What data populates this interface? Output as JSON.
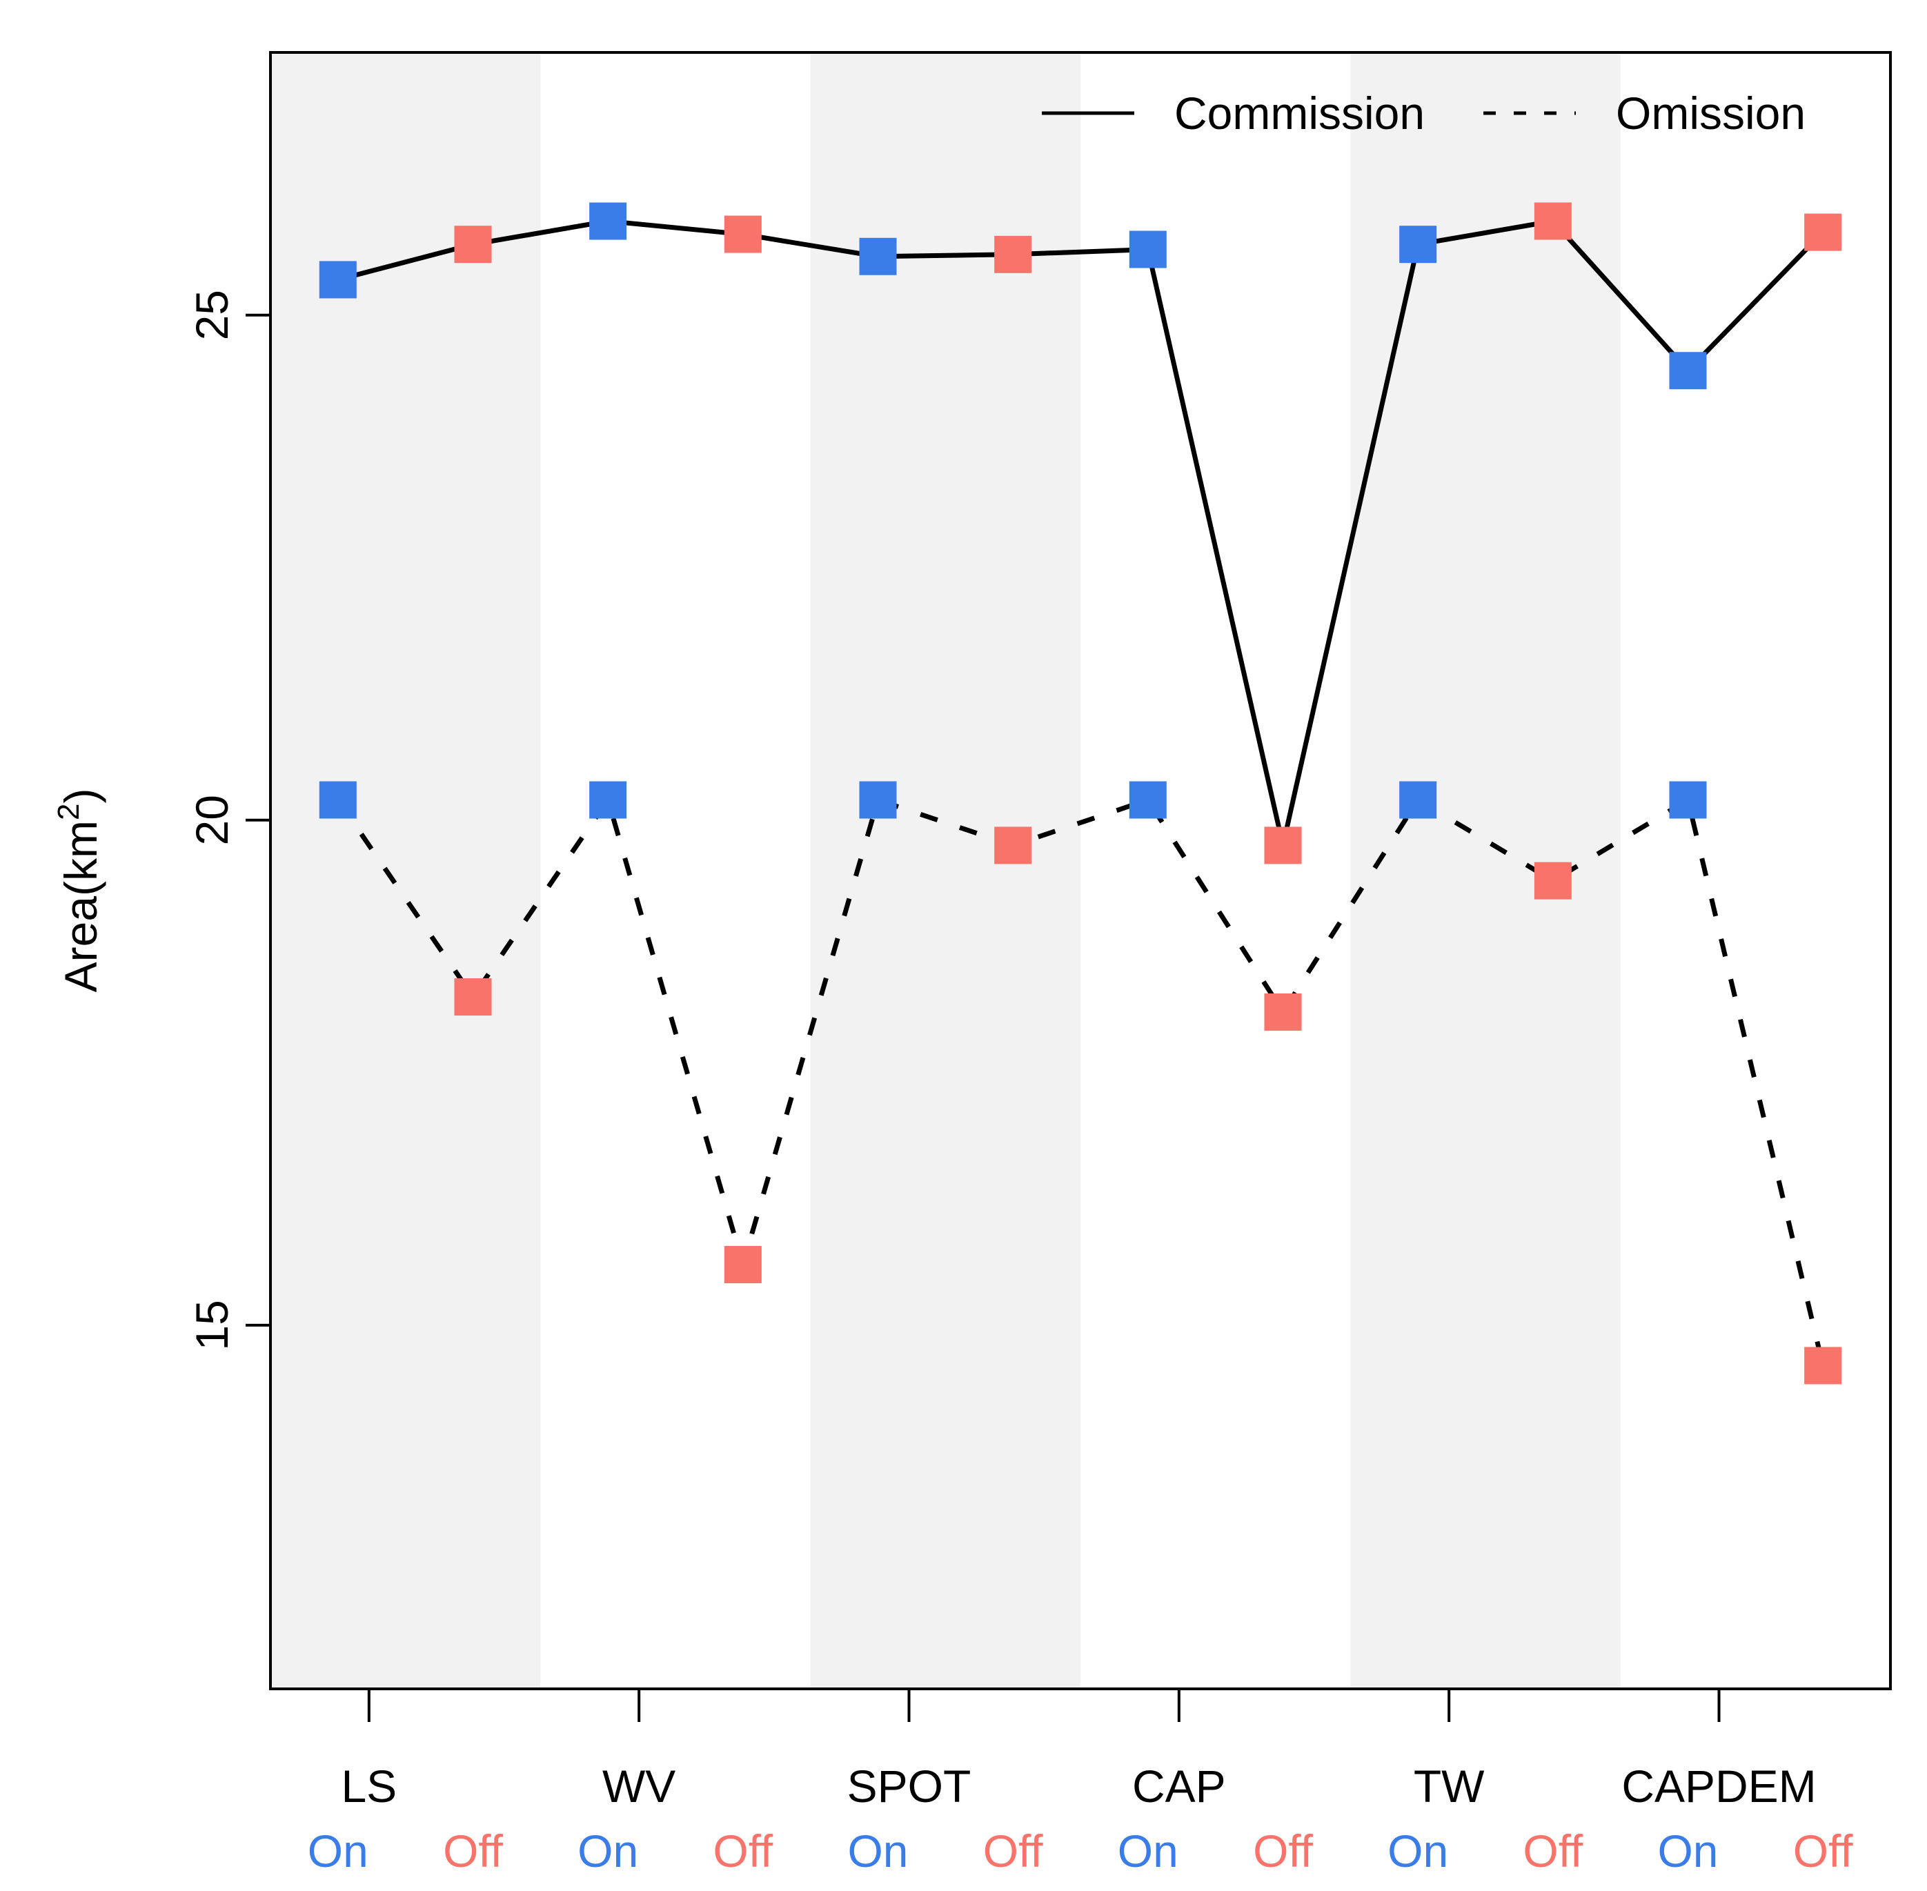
{
  "chart_data": {
    "type": "line",
    "title": "",
    "xlabel": "",
    "ylabel_main": "Area(km",
    "ylabel_sup": "2",
    "ylabel_close": ")",
    "ylim": [
      11.4,
      27.6
    ],
    "yticks": [
      {
        "value": 15,
        "label": "15"
      },
      {
        "value": 20,
        "label": "20"
      },
      {
        "value": 25,
        "label": "25"
      }
    ],
    "groups": [
      "LS",
      "WV",
      "SPOT",
      "CAP",
      "TW",
      "CAPDEM"
    ],
    "conditions": [
      "On",
      "Off"
    ],
    "categories": [
      "LS On",
      "LS Off",
      "WV On",
      "WV Off",
      "SPOT On",
      "SPOT Off",
      "CAP On",
      "CAP Off",
      "TW On",
      "TW Off",
      "CAPDEM On",
      "CAPDEM Off"
    ],
    "series": [
      {
        "name": "Commission",
        "style": "solid",
        "values": [
          25.35,
          25.7,
          25.93,
          25.8,
          25.58,
          25.6,
          25.65,
          19.75,
          25.7,
          25.93,
          24.45,
          25.82
        ]
      },
      {
        "name": "Omission",
        "style": "dashed",
        "values": [
          20.2,
          18.25,
          20.2,
          15.6,
          20.2,
          19.75,
          20.2,
          18.1,
          20.2,
          19.4,
          20.2,
          14.6
        ]
      }
    ],
    "legend": {
      "position": "top-right",
      "entries": [
        "Commission",
        "Omission"
      ]
    },
    "shaded_groups": [
      "LS",
      "SPOT",
      "TW"
    ],
    "grid": false
  },
  "colors": {
    "on": "#3a7de9",
    "off": "#f8736a",
    "shade": "#f1f2f1",
    "line": "#000000"
  }
}
